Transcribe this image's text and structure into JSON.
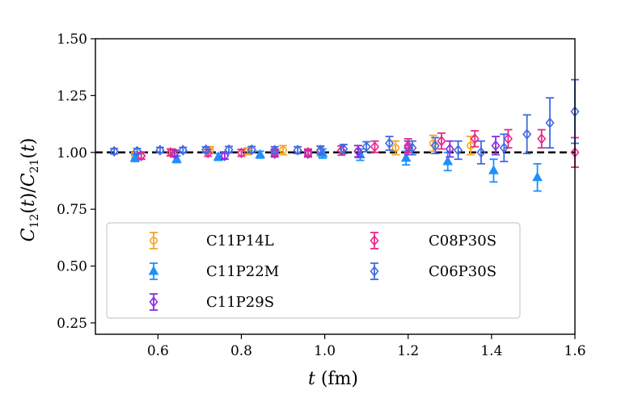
{
  "chart_data": {
    "type": "scatter",
    "ylabel": "C12(t)/C21(t)",
    "xlabel": "t (fm)",
    "xlim": [
      0.45,
      1.6
    ],
    "ylim": [
      0.2,
      1.5
    ],
    "xticks": [
      "0.6",
      "0.8",
      "1.0",
      "1.2",
      "1.4",
      "1.6"
    ],
    "yticks": [
      "0.25",
      "0.50",
      "0.75",
      "1.00",
      "1.25",
      "1.50"
    ],
    "reference_line": 1.0,
    "legend_position": "bottom-left",
    "series": [
      {
        "name": "C11P14L",
        "color": "#f5a623",
        "marker": "circle",
        "points": [
          {
            "x": 0.545,
            "y": 0.985,
            "err": 0.015
          },
          {
            "x": 0.635,
            "y": 1.0,
            "err": 0.015
          },
          {
            "x": 0.725,
            "y": 1.01,
            "err": 0.015
          },
          {
            "x": 0.815,
            "y": 1.005,
            "err": 0.015
          },
          {
            "x": 0.9,
            "y": 1.01,
            "err": 0.02
          },
          {
            "x": 0.99,
            "y": 1.005,
            "err": 0.02
          },
          {
            "x": 1.08,
            "y": 1.005,
            "err": 0.025
          },
          {
            "x": 1.17,
            "y": 1.02,
            "err": 0.03
          },
          {
            "x": 1.26,
            "y": 1.04,
            "err": 0.035
          },
          {
            "x": 1.35,
            "y": 1.03,
            "err": 0.04
          }
        ]
      },
      {
        "name": "C11P22M",
        "color": "#1e90ff",
        "marker": "triangle",
        "points": [
          {
            "x": 0.545,
            "y": 0.975,
            "err": 0.015
          },
          {
            "x": 0.645,
            "y": 0.97,
            "err": 0.015
          },
          {
            "x": 0.745,
            "y": 0.98,
            "err": 0.015
          },
          {
            "x": 0.845,
            "y": 0.99,
            "err": 0.015
          },
          {
            "x": 0.995,
            "y": 0.995,
            "err": 0.02
          },
          {
            "x": 1.085,
            "y": 0.99,
            "err": 0.025
          },
          {
            "x": 1.195,
            "y": 0.975,
            "err": 0.03
          },
          {
            "x": 1.295,
            "y": 0.96,
            "err": 0.04
          },
          {
            "x": 1.405,
            "y": 0.92,
            "err": 0.05
          },
          {
            "x": 1.51,
            "y": 0.89,
            "err": 0.06
          }
        ]
      },
      {
        "name": "C11P29S",
        "color": "#8a2be2",
        "marker": "diamond",
        "points": [
          {
            "x": 0.56,
            "y": 0.985,
            "err": 0.015
          },
          {
            "x": 0.64,
            "y": 0.995,
            "err": 0.015
          },
          {
            "x": 0.76,
            "y": 0.985,
            "err": 0.015
          },
          {
            "x": 0.88,
            "y": 0.995,
            "err": 0.015
          },
          {
            "x": 0.96,
            "y": 0.995,
            "err": 0.015
          },
          {
            "x": 1.08,
            "y": 1.005,
            "err": 0.025
          },
          {
            "x": 1.2,
            "y": 1.02,
            "err": 0.03
          },
          {
            "x": 1.3,
            "y": 1.015,
            "err": 0.035
          },
          {
            "x": 1.41,
            "y": 1.03,
            "err": 0.04
          }
        ]
      },
      {
        "name": "C08P30S",
        "color": "#e7298a",
        "marker": "diamond",
        "points": [
          {
            "x": 0.56,
            "y": 0.985,
            "err": 0.015
          },
          {
            "x": 0.63,
            "y": 1.0,
            "err": 0.015
          },
          {
            "x": 0.72,
            "y": 0.998,
            "err": 0.015
          },
          {
            "x": 0.8,
            "y": 0.998,
            "err": 0.015
          },
          {
            "x": 0.88,
            "y": 1.0,
            "err": 0.015
          },
          {
            "x": 0.96,
            "y": 1.0,
            "err": 0.015
          },
          {
            "x": 1.04,
            "y": 1.008,
            "err": 0.02
          },
          {
            "x": 1.12,
            "y": 1.025,
            "err": 0.025
          },
          {
            "x": 1.2,
            "y": 1.03,
            "err": 0.03
          },
          {
            "x": 1.28,
            "y": 1.05,
            "err": 0.035
          },
          {
            "x": 1.36,
            "y": 1.06,
            "err": 0.035
          },
          {
            "x": 1.44,
            "y": 1.06,
            "err": 0.04
          },
          {
            "x": 1.52,
            "y": 1.06,
            "err": 0.04
          },
          {
            "x": 1.6,
            "y": 1.0,
            "err": 0.065
          }
        ]
      },
      {
        "name": "C06P30S",
        "color": "#4169e1",
        "marker": "diamond",
        "points": [
          {
            "x": 0.495,
            "y": 1.005,
            "err": 0.012
          },
          {
            "x": 0.55,
            "y": 1.005,
            "err": 0.012
          },
          {
            "x": 0.605,
            "y": 1.01,
            "err": 0.012
          },
          {
            "x": 0.66,
            "y": 1.01,
            "err": 0.012
          },
          {
            "x": 0.715,
            "y": 1.012,
            "err": 0.012
          },
          {
            "x": 0.77,
            "y": 1.012,
            "err": 0.014
          },
          {
            "x": 0.825,
            "y": 1.012,
            "err": 0.014
          },
          {
            "x": 0.88,
            "y": 1.01,
            "err": 0.015
          },
          {
            "x": 0.935,
            "y": 1.01,
            "err": 0.015
          },
          {
            "x": 0.99,
            "y": 1.01,
            "err": 0.018
          },
          {
            "x": 1.045,
            "y": 1.015,
            "err": 0.02
          },
          {
            "x": 1.1,
            "y": 1.025,
            "err": 0.022
          },
          {
            "x": 1.155,
            "y": 1.04,
            "err": 0.03
          },
          {
            "x": 1.21,
            "y": 1.02,
            "err": 0.03
          },
          {
            "x": 1.265,
            "y": 1.03,
            "err": 0.035
          },
          {
            "x": 1.32,
            "y": 1.01,
            "err": 0.04
          },
          {
            "x": 1.375,
            "y": 1.0,
            "err": 0.05
          },
          {
            "x": 1.43,
            "y": 1.02,
            "err": 0.06
          },
          {
            "x": 1.485,
            "y": 1.08,
            "err": 0.085
          },
          {
            "x": 1.54,
            "y": 1.13,
            "err": 0.11
          },
          {
            "x": 1.6,
            "y": 1.18,
            "err": 0.14
          }
        ]
      }
    ]
  }
}
